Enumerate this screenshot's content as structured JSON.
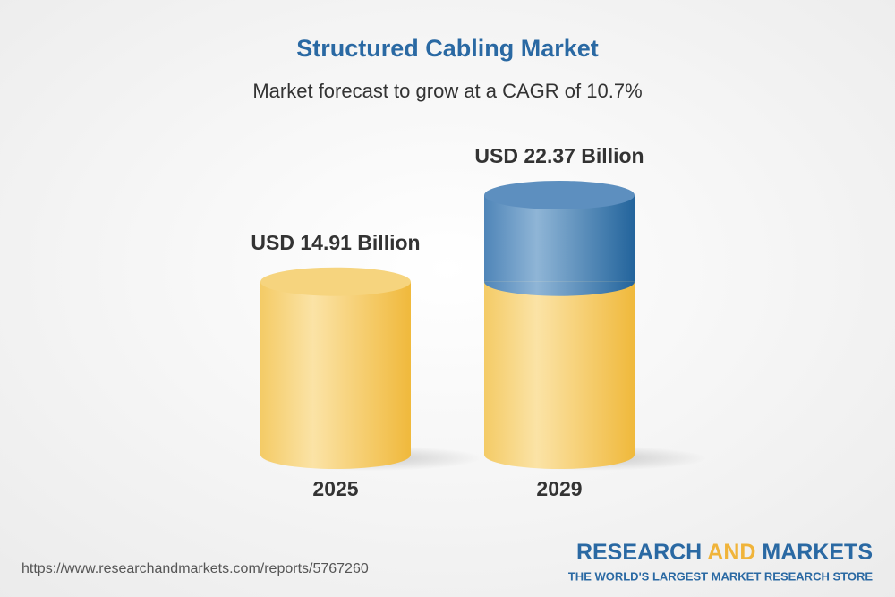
{
  "chart_data": {
    "type": "bar",
    "title": "Structured Cabling Market",
    "subtitle": "Market forecast to grow at a CAGR of 10.7%",
    "categories": [
      "2025",
      "2029"
    ],
    "values": [
      14.91,
      22.37
    ],
    "value_labels": [
      "USD 14.91 Billion",
      "USD 22.37 Billion"
    ],
    "color": "#f3c14e",
    "growth_color": "#2f6fa5"
  },
  "footer": {
    "url": "https://www.researchandmarkets.com/reports/5767260",
    "brand_left": "RESEARCH",
    "brand_mid": "AND",
    "brand_right": "MARKETS",
    "tagline": "THE WORLD'S LARGEST MARKET RESEARCH STORE"
  }
}
